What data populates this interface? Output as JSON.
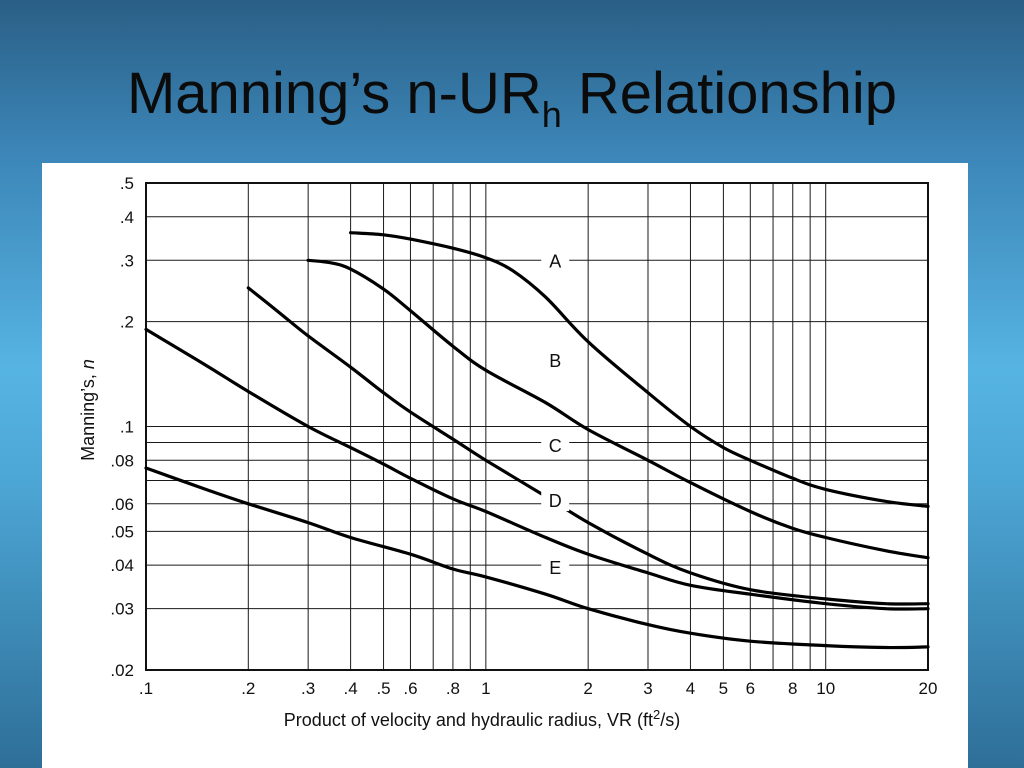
{
  "slide": {
    "title_main": "Manning’s n-UR",
    "title_sub": "h",
    "title_rest": " Relationship"
  },
  "chart_data": {
    "type": "line",
    "title": "",
    "xlabel_main": "Product of velocity and hydraulic radius, VR (ft",
    "xlabel_sup": "2",
    "xlabel_end": "/s)",
    "ylabel_main": "Manning’s, ",
    "ylabel_italic": "n",
    "x_scale": "log",
    "y_scale": "log",
    "xlim": [
      0.1,
      20
    ],
    "ylim": [
      0.02,
      0.5
    ],
    "grid": true,
    "x_ticks": [
      {
        "value": 0.1,
        "label": ".1"
      },
      {
        "value": 0.2,
        "label": ".2"
      },
      {
        "value": 0.3,
        "label": ".3"
      },
      {
        "value": 0.4,
        "label": ".4"
      },
      {
        "value": 0.5,
        "label": ".5"
      },
      {
        "value": 0.6,
        "label": ".6"
      },
      {
        "value": 0.8,
        "label": ".8"
      },
      {
        "value": 1,
        "label": "1"
      },
      {
        "value": 2,
        "label": "2"
      },
      {
        "value": 3,
        "label": "3"
      },
      {
        "value": 4,
        "label": "4"
      },
      {
        "value": 5,
        "label": "5"
      },
      {
        "value": 6,
        "label": "6"
      },
      {
        "value": 8,
        "label": "8"
      },
      {
        "value": 10,
        "label": "10"
      },
      {
        "value": 20,
        "label": "20"
      }
    ],
    "y_ticks": [
      {
        "value": 0.5,
        "label": ".5"
      },
      {
        "value": 0.4,
        "label": ".4"
      },
      {
        "value": 0.3,
        "label": ".3"
      },
      {
        "value": 0.2,
        "label": ".2"
      },
      {
        "value": 0.1,
        "label": ".1"
      },
      {
        "value": 0.08,
        "label": ".08"
      },
      {
        "value": 0.06,
        "label": ".06"
      },
      {
        "value": 0.05,
        "label": ".05"
      },
      {
        "value": 0.04,
        "label": ".04"
      },
      {
        "value": 0.03,
        "label": ".03"
      },
      {
        "value": 0.02,
        "label": ".02"
      }
    ],
    "x_minor_grid": [
      0.7,
      0.9,
      7,
      9
    ],
    "y_minor_grid": [
      0.09,
      0.07
    ],
    "series": [
      {
        "name": "A",
        "label_at": {
          "x": 1.6,
          "y": 0.3
        },
        "points": [
          [
            0.4,
            0.36
          ],
          [
            0.5,
            0.355
          ],
          [
            0.6,
            0.345
          ],
          [
            0.8,
            0.325
          ],
          [
            1,
            0.305
          ],
          [
            1.2,
            0.28
          ],
          [
            1.5,
            0.235
          ],
          [
            2,
            0.175
          ],
          [
            3,
            0.125
          ],
          [
            4,
            0.1
          ],
          [
            5,
            0.087
          ],
          [
            6,
            0.08
          ],
          [
            8,
            0.071
          ],
          [
            10,
            0.066
          ],
          [
            15,
            0.061
          ],
          [
            20,
            0.059
          ]
        ]
      },
      {
        "name": "B",
        "label_at": {
          "x": 1.6,
          "y": 0.155
        },
        "points": [
          [
            0.3,
            0.3
          ],
          [
            0.35,
            0.295
          ],
          [
            0.4,
            0.283
          ],
          [
            0.5,
            0.248
          ],
          [
            0.6,
            0.215
          ],
          [
            0.8,
            0.17
          ],
          [
            1,
            0.145
          ],
          [
            1.5,
            0.117
          ],
          [
            2,
            0.098
          ],
          [
            3,
            0.08
          ],
          [
            4,
            0.069
          ],
          [
            6,
            0.057
          ],
          [
            8,
            0.051
          ],
          [
            10,
            0.048
          ],
          [
            15,
            0.044
          ],
          [
            20,
            0.042
          ]
        ]
      },
      {
        "name": "C",
        "label_at": {
          "x": 1.6,
          "y": 0.0885
        },
        "points": [
          [
            0.2,
            0.25
          ],
          [
            0.25,
            0.21
          ],
          [
            0.3,
            0.182
          ],
          [
            0.4,
            0.148
          ],
          [
            0.5,
            0.125
          ],
          [
            0.6,
            0.11
          ],
          [
            0.8,
            0.092
          ],
          [
            1,
            0.08
          ],
          [
            1.5,
            0.063
          ],
          [
            2,
            0.053
          ],
          [
            3,
            0.043
          ],
          [
            4,
            0.038
          ],
          [
            6,
            0.034
          ],
          [
            10,
            0.032
          ],
          [
            15,
            0.031
          ],
          [
            20,
            0.031
          ]
        ]
      },
      {
        "name": "D",
        "label_at": {
          "x": 1.6,
          "y": 0.0615
        },
        "points": [
          [
            0.1,
            0.19
          ],
          [
            0.15,
            0.15
          ],
          [
            0.2,
            0.126
          ],
          [
            0.3,
            0.1
          ],
          [
            0.4,
            0.087
          ],
          [
            0.5,
            0.078
          ],
          [
            0.6,
            0.071
          ],
          [
            0.8,
            0.062
          ],
          [
            1,
            0.057
          ],
          [
            1.5,
            0.048
          ],
          [
            2,
            0.043
          ],
          [
            3,
            0.038
          ],
          [
            4,
            0.035
          ],
          [
            6,
            0.033
          ],
          [
            10,
            0.031
          ],
          [
            15,
            0.03
          ],
          [
            20,
            0.03
          ]
        ]
      },
      {
        "name": "E",
        "label_at": {
          "x": 1.6,
          "y": 0.0395
        },
        "points": [
          [
            0.1,
            0.076
          ],
          [
            0.15,
            0.066
          ],
          [
            0.2,
            0.06
          ],
          [
            0.3,
            0.053
          ],
          [
            0.4,
            0.048
          ],
          [
            0.6,
            0.043
          ],
          [
            0.8,
            0.039
          ],
          [
            1,
            0.037
          ],
          [
            1.5,
            0.033
          ],
          [
            2,
            0.03
          ],
          [
            3,
            0.027
          ],
          [
            4,
            0.0255
          ],
          [
            6,
            0.0242
          ],
          [
            10,
            0.0235
          ],
          [
            15,
            0.0232
          ],
          [
            20,
            0.0233
          ]
        ]
      }
    ]
  }
}
